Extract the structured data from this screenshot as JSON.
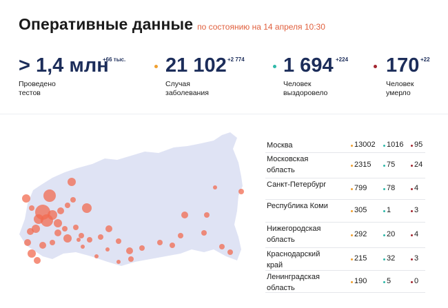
{
  "header": {
    "title": "Оперативные данные",
    "subtitle": "по состоянию на 14 апреля 10:30"
  },
  "stats": [
    {
      "value": "> 1,4 млн",
      "delta": "+66 тыс.",
      "label": "Проведено\nтестов",
      "dot_color": ""
    },
    {
      "value": "21 102",
      "delta": "+2 774",
      "label": "Случая\nзаболевания",
      "dot_color": "#f0a030"
    },
    {
      "value": "1 694",
      "delta": "+224",
      "label": "Человек\nвыздоровело",
      "dot_color": "#2fb9a9"
    },
    {
      "value": "170",
      "delta": "+22",
      "label": "Человек\nумерло",
      "dot_color": "#a3262f"
    }
  ],
  "regions": [
    {
      "name": "Москва",
      "cases": "13002",
      "recovered": "1016",
      "deaths": "95"
    },
    {
      "name": "Московская\nобласть",
      "cases": "2315",
      "recovered": "75",
      "deaths": "24"
    },
    {
      "name": "Санкт-Петербург",
      "cases": "799",
      "recovered": "78",
      "deaths": "4"
    },
    {
      "name": "Республика Коми",
      "cases": "305",
      "recovered": "1",
      "deaths": "3"
    },
    {
      "name": "Нижегородская\nобласть",
      "cases": "292",
      "recovered": "20",
      "deaths": "4"
    },
    {
      "name": "Краснодарский\nкрай",
      "cases": "215",
      "recovered": "32",
      "deaths": "3"
    },
    {
      "name": "Ленинградская\nобласть",
      "cases": "190",
      "recovered": "5",
      "deaths": "0"
    }
  ],
  "colors": {
    "accent_orange": "#e05f3d",
    "cases": "#f0a030",
    "recovered": "#2fb9a9",
    "deaths": "#a3262f",
    "map_fill": "#dfe3f4",
    "bubble": "#f26b50",
    "number_navy": "#1c2d5a"
  }
}
